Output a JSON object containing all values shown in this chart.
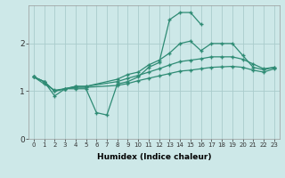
{
  "x": [
    0,
    1,
    2,
    3,
    4,
    5,
    6,
    7,
    8,
    9,
    10,
    11,
    12,
    13,
    14,
    15,
    16,
    17,
    18,
    19,
    20,
    21,
    22,
    23
  ],
  "line1_y": [
    1.3,
    1.2,
    0.9,
    1.05,
    1.05,
    1.05,
    0.55,
    0.5,
    1.15,
    1.2,
    1.3,
    1.5,
    1.6,
    2.5,
    2.65,
    2.65,
    2.4,
    null,
    null,
    null,
    null,
    null,
    null,
    null
  ],
  "line2_y": [
    1.3,
    1.2,
    1.0,
    1.05,
    1.1,
    1.1,
    null,
    null,
    1.25,
    1.35,
    1.4,
    1.55,
    1.65,
    1.8,
    2.0,
    2.05,
    1.85,
    2.0,
    2.0,
    2.0,
    1.75,
    1.5,
    1.45,
    1.5
  ],
  "line3_y": [
    1.3,
    1.2,
    1.0,
    1.05,
    1.1,
    1.1,
    null,
    null,
    1.2,
    1.27,
    1.33,
    1.4,
    1.47,
    1.55,
    1.62,
    1.65,
    1.68,
    1.72,
    1.72,
    1.72,
    1.67,
    1.57,
    1.47,
    1.5
  ],
  "line4_y": [
    1.3,
    1.15,
    1.02,
    1.05,
    1.08,
    1.08,
    null,
    null,
    1.12,
    1.16,
    1.22,
    1.27,
    1.32,
    1.37,
    1.42,
    1.44,
    1.47,
    1.5,
    1.51,
    1.52,
    1.5,
    1.44,
    1.4,
    1.47
  ],
  "color": "#2e8b74",
  "bg_color": "#cde8e8",
  "grid_color": "#aacccc",
  "xlabel": "Humidex (Indice chaleur)",
  "ylim": [
    0,
    2.8
  ],
  "xlim": [
    -0.5,
    23.5
  ],
  "yticks": [
    0,
    1,
    2
  ],
  "xticks": [
    0,
    1,
    2,
    3,
    4,
    5,
    6,
    7,
    8,
    9,
    10,
    11,
    12,
    13,
    14,
    15,
    16,
    17,
    18,
    19,
    20,
    21,
    22,
    23
  ]
}
